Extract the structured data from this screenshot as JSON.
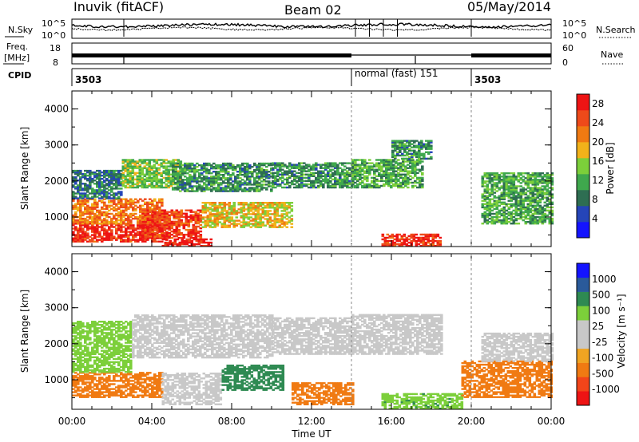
{
  "header": {
    "station": "Inuvik (fitACF)",
    "beam": "Beam 02",
    "date": "05/May/2014"
  },
  "top_panels": {
    "noise_left": "N.Sky",
    "noise_right": "N.Search",
    "noise_ticks_left": [
      "10^5",
      "10^0"
    ],
    "noise_ticks_right": [
      "10^5",
      "10^0"
    ],
    "freq_left": "Freq.",
    "freq_units": "[MHz]",
    "freq_ticks_left": [
      "18",
      "8"
    ],
    "nave_label": "Nave",
    "nave_ticks_right": [
      "60",
      "0"
    ],
    "cpid_label": "CPID",
    "cpid_segments": [
      "3503",
      "normal (fast) 151",
      "3503"
    ]
  },
  "colors": {
    "power": [
      "#1414ff",
      "#2545b8",
      "#2e6e52",
      "#3fa84d",
      "#7ccf3a",
      "#f2b21a",
      "#f07a12",
      "#ee4a1a",
      "#ee1414"
    ],
    "velocity": [
      "#ee1414",
      "#f2451a",
      "#f07a12",
      "#f0a422",
      "#c8c8c8",
      "#c8c8c8",
      "#7ccf3a",
      "#2e8a52",
      "#2a5a9a",
      "#1414ff"
    ]
  },
  "chart_data": [
    {
      "type": "heatmap",
      "panel": "power",
      "ylabel": "Slant Range [km]",
      "yticks": [
        "1000",
        "2000",
        "3000",
        "4000"
      ],
      "ylim": [
        180,
        4500
      ],
      "xlim": [
        "00:00",
        "24:00"
      ],
      "colorbar_label": "Power [dB]",
      "colorbar_ticks": [
        "4",
        "8",
        "12",
        "16",
        "20",
        "24",
        "28"
      ],
      "colorbar_range": [
        0,
        30
      ],
      "bands": [
        {
          "t0": 0.0,
          "t1": 4.7,
          "r0": 300,
          "r1": 800,
          "level": 27
        },
        {
          "t0": 0.0,
          "t1": 4.5,
          "r0": 800,
          "r1": 1500,
          "level": 22
        },
        {
          "t0": 0.0,
          "t1": 2.5,
          "r0": 1500,
          "r1": 2300,
          "level": 8
        },
        {
          "t0": 2.5,
          "t1": 5.5,
          "r0": 1800,
          "r1": 2600,
          "level": 14
        },
        {
          "t0": 3.5,
          "t1": 6.5,
          "r0": 400,
          "r1": 1200,
          "level": 26
        },
        {
          "t0": 4.5,
          "t1": 7.0,
          "r0": 180,
          "r1": 400,
          "level": 29
        },
        {
          "t0": 5.0,
          "t1": 10.0,
          "r0": 1700,
          "r1": 2500,
          "level": 10
        },
        {
          "t0": 6.5,
          "t1": 11.0,
          "r0": 700,
          "r1": 1400,
          "level": 18
        },
        {
          "t0": 10.0,
          "t1": 14.0,
          "r0": 1800,
          "r1": 2500,
          "level": 10
        },
        {
          "t0": 14.0,
          "t1": 17.5,
          "r0": 1800,
          "r1": 2600,
          "level": 12
        },
        {
          "t0": 15.5,
          "t1": 18.5,
          "r0": 180,
          "r1": 500,
          "level": 27
        },
        {
          "t0": 16.0,
          "t1": 18.0,
          "r0": 2600,
          "r1": 3100,
          "level": 10
        },
        {
          "t0": 20.5,
          "t1": 24.0,
          "r0": 800,
          "r1": 2200,
          "level": 12
        }
      ]
    },
    {
      "type": "heatmap",
      "panel": "velocity",
      "ylabel": "Slant Range [km]",
      "xlabel": "Time UT",
      "xticks": [
        "00:00",
        "04:00",
        "08:00",
        "12:00",
        "16:00",
        "20:00",
        "00:00"
      ],
      "yticks": [
        "1000",
        "2000",
        "3000",
        "4000"
      ],
      "ylim": [
        180,
        4500
      ],
      "xlim": [
        "00:00",
        "24:00"
      ],
      "colorbar_label": "Velocity [m s⁻¹]",
      "colorbar_ticks": [
        "-1000",
        "-500",
        "-100",
        "-25",
        "25",
        "100",
        "500",
        "1000"
      ],
      "bands": [
        {
          "t0": 0.0,
          "t1": 4.5,
          "r0": 500,
          "r1": 1200,
          "velocity": -250
        },
        {
          "t0": 0.0,
          "t1": 3.0,
          "r0": 1200,
          "r1": 2600,
          "velocity": 60
        },
        {
          "t0": 3.0,
          "t1": 10.0,
          "r0": 1600,
          "r1": 2800,
          "velocity": 0
        },
        {
          "t0": 4.5,
          "t1": 7.5,
          "r0": 300,
          "r1": 1200,
          "velocity": 0
        },
        {
          "t0": 7.5,
          "t1": 10.5,
          "r0": 700,
          "r1": 1400,
          "velocity": 200
        },
        {
          "t0": 10.0,
          "t1": 14.0,
          "r0": 1700,
          "r1": 2700,
          "velocity": 0
        },
        {
          "t0": 11.0,
          "t1": 14.0,
          "r0": 300,
          "r1": 900,
          "velocity": -200
        },
        {
          "t0": 14.0,
          "t1": 18.5,
          "r0": 1700,
          "r1": 2800,
          "velocity": 0
        },
        {
          "t0": 15.5,
          "t1": 19.5,
          "r0": 180,
          "r1": 600,
          "velocity": 80
        },
        {
          "t0": 19.5,
          "t1": 24.0,
          "r0": 500,
          "r1": 1500,
          "velocity": -250
        },
        {
          "t0": 20.5,
          "t1": 24.0,
          "r0": 1500,
          "r1": 2300,
          "velocity": 0
        }
      ]
    }
  ]
}
